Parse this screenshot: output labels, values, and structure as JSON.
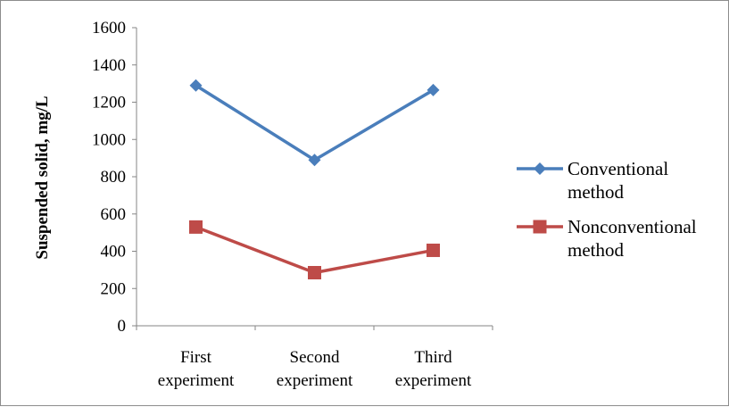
{
  "chart_data": {
    "type": "line",
    "categories": [
      [
        "First",
        "experiment"
      ],
      [
        "Second",
        "experiment"
      ],
      [
        "Third",
        "experiment"
      ]
    ],
    "series": [
      {
        "name": [
          "Conventional",
          "method"
        ],
        "values": [
          1290,
          890,
          1265
        ],
        "color": "#4a7ebb",
        "marker": "diamond"
      },
      {
        "name": [
          "Nonconventional",
          "method"
        ],
        "values": [
          530,
          285,
          405
        ],
        "color": "#be4b48",
        "marker": "square"
      }
    ],
    "ylabel": "Suspended solid, mg/L",
    "ylim": [
      0,
      1600
    ],
    "yticks": [
      0,
      200,
      400,
      600,
      800,
      1000,
      1200,
      1400,
      1600
    ],
    "grid": false,
    "legend": "right"
  }
}
